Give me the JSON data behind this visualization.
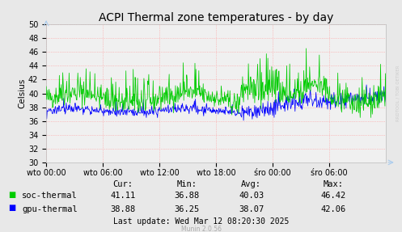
{
  "title": "ACPI Thermal zone temperatures - by day",
  "ylabel": "Celsius",
  "ylim": [
    30,
    50
  ],
  "xlim": [
    0,
    1
  ],
  "xtick_labels": [
    "wto 00:00",
    "wto 06:00",
    "wto 12:00",
    "wto 18:00",
    "śro 00:00",
    "śro 06:00"
  ],
  "xtick_positions": [
    0.0,
    0.1667,
    0.3333,
    0.5,
    0.6667,
    0.8333
  ],
  "bg_color": "#e8e8e8",
  "plot_bg_color": "#f0f0f0",
  "grid_color": "#ff9999",
  "soc_color": "#00cc00",
  "gpu_color": "#0000ff",
  "soc_label": "soc-thermal",
  "gpu_label": "gpu-thermal",
  "legend_table": {
    "header_labels": [
      "Cur:",
      "Min:",
      "Avg:",
      "Max:"
    ],
    "soc_vals": [
      "41.11",
      "36.88",
      "40.03",
      "46.42"
    ],
    "gpu_vals": [
      "38.88",
      "36.25",
      "38.07",
      "42.06"
    ]
  },
  "last_update": "Last update: Wed Mar 12 08:20:30 2025",
  "munin_version": "Munin 2.0.56",
  "watermark": "RRDTOOL / TOBI OETIKER",
  "title_fontsize": 10,
  "axis_fontsize": 7,
  "legend_fontsize": 7.5
}
